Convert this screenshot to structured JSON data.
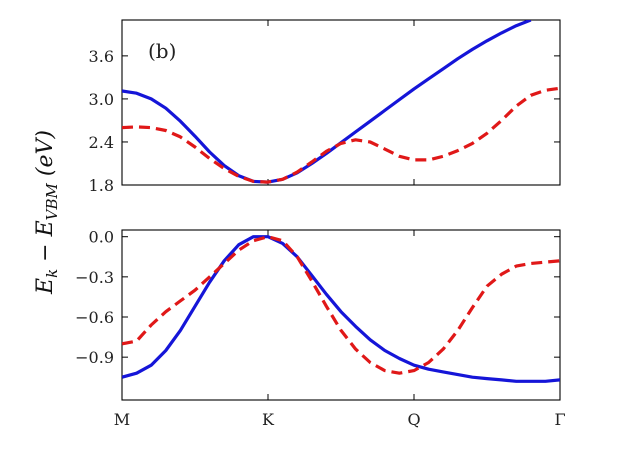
{
  "chart_data": {
    "type": "line",
    "panel_label": "(b)",
    "ylabel": "E_k − E_VBM (eV)",
    "ylabel_main": "E",
    "ylabel_sub1": "k",
    "ylabel_mid": " − E",
    "ylabel_sub2": "VBM",
    "ylabel_unit": "  (eV)",
    "x_ticks": [
      {
        "label": "M",
        "value": 0
      },
      {
        "label": "K",
        "value": 1
      },
      {
        "label": "Q",
        "value": 2
      },
      {
        "label": "Γ",
        "value": 3
      }
    ],
    "xlim": [
      0,
      3
    ],
    "panels": [
      {
        "name": "conduction",
        "ylim": [
          1.8,
          4.1
        ],
        "y_ticks": [
          {
            "label": "1.8",
            "value": 1.8
          },
          {
            "label": "2.4",
            "value": 2.4
          },
          {
            "label": "3.0",
            "value": 3.0
          },
          {
            "label": "3.6",
            "value": 3.6
          }
        ],
        "series": [
          {
            "style": "solid",
            "color": "#1515d8",
            "x": [
              0,
              0.1,
              0.2,
              0.3,
              0.4,
              0.5,
              0.6,
              0.7,
              0.8,
              0.9,
              1.0,
              1.1,
              1.2,
              1.3,
              1.4,
              1.5,
              1.6,
              1.7,
              1.8,
              1.9,
              2.0,
              2.1,
              2.2,
              2.3,
              2.4,
              2.5,
              2.6,
              2.7,
              2.8
            ],
            "y": [
              3.11,
              3.08,
              3.0,
              2.87,
              2.69,
              2.48,
              2.26,
              2.07,
              1.93,
              1.85,
              1.84,
              1.88,
              1.97,
              2.1,
              2.24,
              2.39,
              2.54,
              2.69,
              2.84,
              2.99,
              3.14,
              3.28,
              3.42,
              3.56,
              3.69,
              3.81,
              3.92,
              4.02,
              4.1
            ]
          },
          {
            "style": "dashed",
            "color": "#e01818",
            "x": [
              0,
              0.1,
              0.2,
              0.3,
              0.4,
              0.5,
              0.6,
              0.7,
              0.8,
              0.9,
              1.0,
              1.1,
              1.2,
              1.3,
              1.4,
              1.5,
              1.6,
              1.7,
              1.8,
              1.9,
              2.0,
              2.1,
              2.2,
              2.3,
              2.4,
              2.5,
              2.6,
              2.7,
              2.8,
              2.9,
              3.0
            ],
            "y": [
              2.6,
              2.61,
              2.6,
              2.56,
              2.47,
              2.33,
              2.17,
              2.03,
              1.92,
              1.85,
              1.84,
              1.88,
              1.98,
              2.12,
              2.27,
              2.38,
              2.43,
              2.4,
              2.3,
              2.2,
              2.15,
              2.15,
              2.2,
              2.28,
              2.38,
              2.52,
              2.7,
              2.9,
              3.05,
              3.12,
              3.15
            ]
          }
        ]
      },
      {
        "name": "valence",
        "ylim": [
          -1.22,
          0.05
        ],
        "y_ticks": [
          {
            "label": "−0.9",
            "value": -0.9
          },
          {
            "label": "−0.6",
            "value": -0.6
          },
          {
            "label": "−0.3",
            "value": -0.3
          },
          {
            "label": "0.0",
            "value": 0.0
          }
        ],
        "series": [
          {
            "style": "solid",
            "color": "#1515d8",
            "x": [
              0,
              0.1,
              0.2,
              0.3,
              0.4,
              0.5,
              0.6,
              0.7,
              0.8,
              0.9,
              1.0,
              1.1,
              1.2,
              1.3,
              1.4,
              1.5,
              1.6,
              1.7,
              1.8,
              1.9,
              2.0,
              2.1,
              2.2,
              2.3,
              2.4,
              2.5,
              2.6,
              2.7,
              2.8,
              2.9,
              3.0
            ],
            "y": [
              -1.05,
              -1.02,
              -0.96,
              -0.85,
              -0.7,
              -0.52,
              -0.34,
              -0.18,
              -0.06,
              0.0,
              0.0,
              -0.05,
              -0.15,
              -0.29,
              -0.43,
              -0.56,
              -0.67,
              -0.77,
              -0.85,
              -0.91,
              -0.96,
              -0.99,
              -1.01,
              -1.03,
              -1.05,
              -1.06,
              -1.07,
              -1.08,
              -1.08,
              -1.08,
              -1.07
            ]
          },
          {
            "style": "dashed",
            "color": "#e01818",
            "x": [
              0,
              0.1,
              0.2,
              0.3,
              0.4,
              0.5,
              0.6,
              0.7,
              0.8,
              0.9,
              1.0,
              1.1,
              1.2,
              1.3,
              1.4,
              1.5,
              1.6,
              1.7,
              1.8,
              1.9,
              2.0,
              2.1,
              2.2,
              2.3,
              2.4,
              2.5,
              2.6,
              2.7,
              2.8,
              2.9,
              3.0
            ],
            "y": [
              -0.8,
              -0.78,
              -0.66,
              -0.56,
              -0.48,
              -0.4,
              -0.3,
              -0.2,
              -0.1,
              -0.03,
              0.0,
              -0.03,
              -0.15,
              -0.33,
              -0.52,
              -0.7,
              -0.84,
              -0.94,
              -1.0,
              -1.02,
              -1.0,
              -0.94,
              -0.84,
              -0.7,
              -0.53,
              -0.37,
              -0.28,
              -0.22,
              -0.2,
              -0.19,
              -0.18
            ]
          }
        ]
      }
    ]
  }
}
